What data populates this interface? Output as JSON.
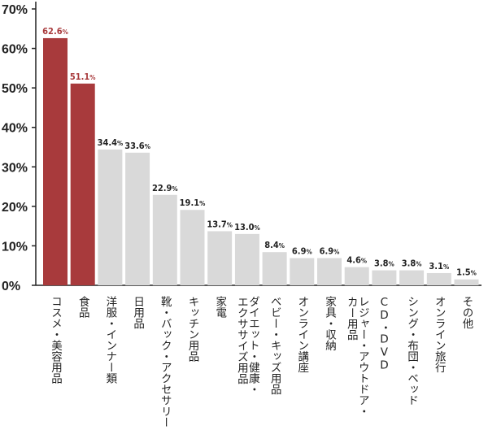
{
  "chart_data": {
    "type": "bar",
    "title": "",
    "xlabel": "",
    "ylabel": "",
    "ylim": [
      0,
      70
    ],
    "yticks": [
      0,
      10,
      20,
      30,
      40,
      50,
      60,
      70
    ],
    "ytick_labels": [
      "0%",
      "10%",
      "20%",
      "30%",
      "40%",
      "50%",
      "60%",
      "70%"
    ],
    "grid": false,
    "categories": [
      "コスメ・美容用品",
      "食品",
      "洋服・インナー類",
      "日用品",
      "靴・バック・アクセサリー",
      "キッチン用品",
      "家電",
      "ダイエット・健康・\nエクササイズ用品",
      "ベビー・キッズ用品",
      "オンライン講座",
      "家具・収納",
      "レジャー・アウトドア・\nカー用品",
      "CD・DVD",
      "シング・布団・ベッド",
      "オンライン旅行",
      "その他"
    ],
    "values": [
      62.6,
      51.1,
      34.4,
      33.6,
      22.9,
      19.1,
      13.7,
      13.0,
      8.4,
      6.9,
      6.9,
      4.6,
      3.8,
      3.8,
      3.1,
      1.5
    ],
    "value_labels": [
      "62.6",
      "51.1",
      "34.4",
      "33.6",
      "22.9",
      "19.1",
      "13.7",
      "13.0",
      "8.4",
      "6.9",
      "6.9",
      "4.6",
      "3.8",
      "3.8",
      "3.1",
      "1.5"
    ],
    "value_suffix": "%",
    "highlight_count": 2,
    "colors": {
      "highlight_bar": "#a83a3c",
      "normal_bar": "#d9d9d9",
      "highlight_label": "#a83a3c",
      "normal_label": "#222222",
      "axis": "#222222"
    }
  }
}
